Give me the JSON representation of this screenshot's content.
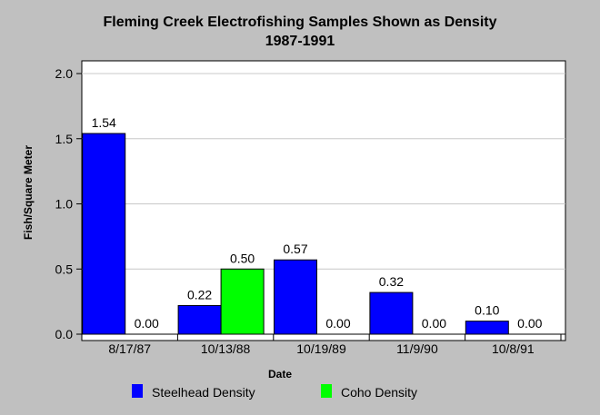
{
  "chart_data": {
    "type": "bar",
    "title": "Fleming Creek Electrofishing Samples Shown as Density",
    "subtitle": "1987-1991",
    "xlabel": "Date",
    "ylabel": "Fish/Square Meter",
    "categories": [
      "8/17/87",
      "10/13/88",
      "10/19/89",
      "11/9/90",
      "10/8/91"
    ],
    "series": [
      {
        "name": "Steelhead Density",
        "color": "#0000ff",
        "values": [
          1.54,
          0.22,
          0.57,
          0.32,
          0.1
        ],
        "labels": [
          "1.54",
          "0.22",
          "0.57",
          "0.32",
          "0.10"
        ]
      },
      {
        "name": "Coho Density",
        "color": "#00ff00",
        "values": [
          0.0,
          0.5,
          0.0,
          0.0,
          0.0
        ],
        "labels": [
          "0.00",
          "0.50",
          "0.00",
          "0.00",
          "0.00"
        ]
      }
    ],
    "ylim": [
      0,
      2.0
    ],
    "yticks": [
      "0.0",
      "0.5",
      "1.0",
      "1.5",
      "2.0"
    ],
    "grid": true,
    "legend_position": "bottom"
  }
}
